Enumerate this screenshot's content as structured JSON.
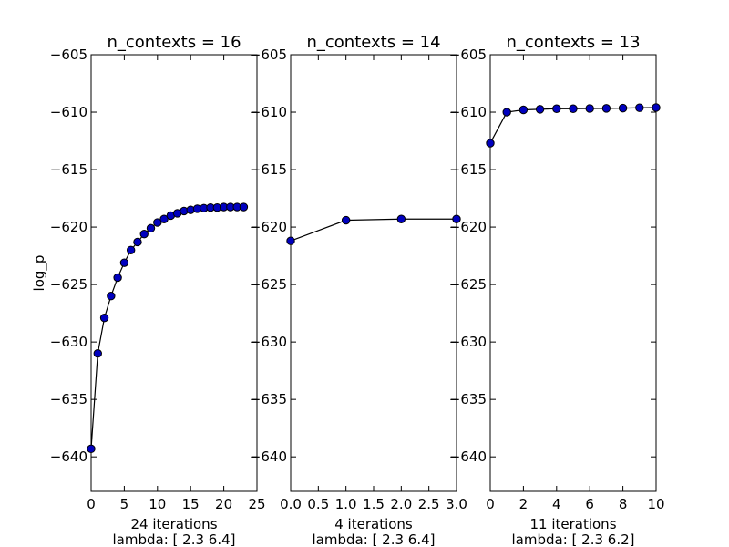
{
  "chart_data": [
    {
      "type": "line",
      "title": "n_contexts = 16",
      "ylabel": "log_p",
      "xlabel_lines": [
        "24 iterations",
        "lambda: [ 2.3  6.4]"
      ],
      "xlim": [
        0,
        25
      ],
      "ylim": [
        -643,
        -605
      ],
      "xticks": [
        0,
        5,
        10,
        15,
        20,
        25
      ],
      "xtick_labels": [
        "0",
        "5",
        "10",
        "15",
        "20",
        "25"
      ],
      "yticks": [
        -605,
        -610,
        -615,
        -620,
        -625,
        -630,
        -635,
        -640
      ],
      "ytick_labels": [
        "−605",
        "−610",
        "−615",
        "−620",
        "−625",
        "−630",
        "−635",
        "−640"
      ],
      "series": [
        {
          "x": [
            0,
            1,
            2,
            3,
            4,
            5,
            6,
            7,
            8,
            9,
            10,
            11,
            12,
            13,
            14,
            15,
            16,
            17,
            18,
            19,
            20,
            21,
            22,
            23
          ],
          "values": [
            -639.3,
            -631.0,
            -627.9,
            -626.0,
            -624.4,
            -623.1,
            -622.0,
            -621.3,
            -620.6,
            -620.1,
            -619.6,
            -619.3,
            -619.0,
            -618.8,
            -618.6,
            -618.5,
            -618.4,
            -618.35,
            -618.3,
            -618.3,
            -618.25,
            -618.25,
            -618.25,
            -618.25
          ]
        }
      ]
    },
    {
      "type": "line",
      "title": "n_contexts = 14",
      "ylabel": "",
      "xlabel_lines": [
        "4 iterations",
        "lambda: [ 2.3  6.4]"
      ],
      "xlim": [
        0,
        3
      ],
      "ylim": [
        -643,
        -605
      ],
      "xticks": [
        0,
        0.5,
        1,
        1.5,
        2,
        2.5,
        3
      ],
      "xtick_labels": [
        "0.0",
        "0.5",
        "1.0",
        "1.5",
        "2.0",
        "2.5",
        "3.0"
      ],
      "yticks": [
        -605,
        -610,
        -615,
        -620,
        -625,
        -630,
        -635,
        -640
      ],
      "ytick_labels": [
        "−605",
        "−610",
        "−615",
        "−620",
        "−625",
        "−630",
        "−635",
        "−640"
      ],
      "series": [
        {
          "x": [
            0,
            1,
            2,
            3
          ],
          "values": [
            -621.2,
            -619.4,
            -619.3,
            -619.3
          ]
        }
      ]
    },
    {
      "type": "line",
      "title": "n_contexts = 13",
      "ylabel": "",
      "xlabel_lines": [
        "11 iterations",
        "lambda: [ 2.3  6.2]"
      ],
      "xlim": [
        0,
        10
      ],
      "ylim": [
        -643,
        -605
      ],
      "xticks": [
        0,
        2,
        4,
        6,
        8,
        10
      ],
      "xtick_labels": [
        "0",
        "2",
        "4",
        "6",
        "8",
        "10"
      ],
      "yticks": [
        -605,
        -610,
        -615,
        -620,
        -625,
        -630,
        -635,
        -640
      ],
      "ytick_labels": [
        "−605",
        "−610",
        "−615",
        "−620",
        "−625",
        "−630",
        "−635",
        "−640"
      ],
      "series": [
        {
          "x": [
            0,
            1,
            2,
            3,
            4,
            5,
            6,
            7,
            8,
            9,
            10
          ],
          "values": [
            -612.7,
            -610.0,
            -609.8,
            -609.75,
            -609.7,
            -609.7,
            -609.68,
            -609.67,
            -609.65,
            -609.62,
            -609.6
          ]
        }
      ]
    }
  ],
  "style": {
    "marker_color": "#0000bf",
    "line_color": "#000000",
    "axis_color": "#000000",
    "background": "#ffffff"
  }
}
